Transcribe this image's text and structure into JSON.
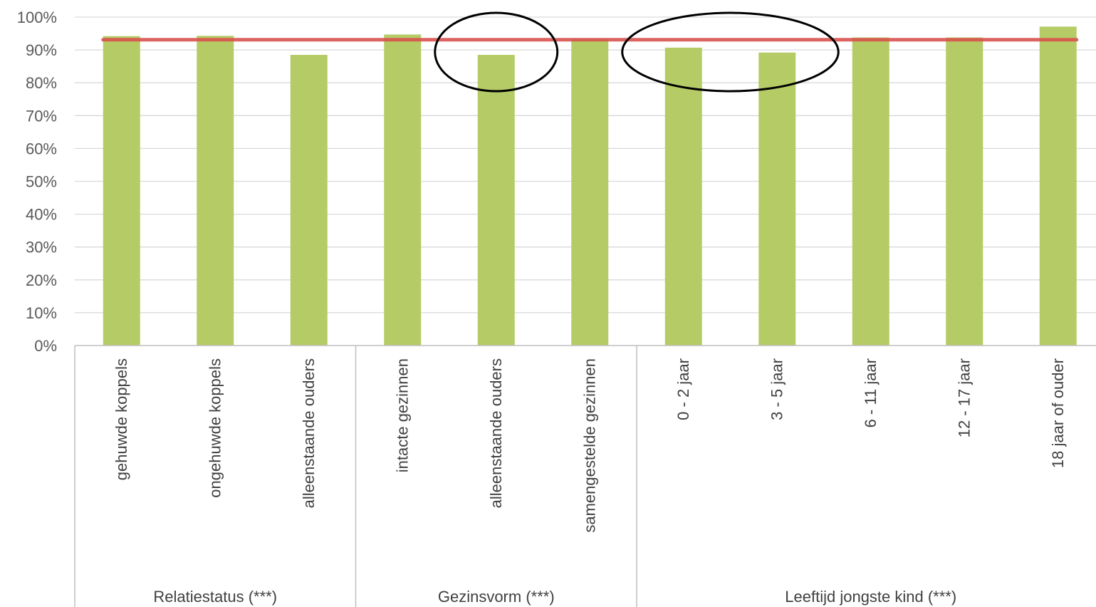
{
  "chart_data": {
    "type": "bar",
    "y_ticks": [
      "0%",
      "10%",
      "20%",
      "30%",
      "40%",
      "50%",
      "60%",
      "70%",
      "80%",
      "90%",
      "100%"
    ],
    "ylim": [
      0,
      100
    ],
    "grid": true,
    "categories": [
      "gehuwde koppels",
      "ongehuwde koppels",
      "alleenstaande ouders",
      "intacte gezinnen",
      "alleenstaande ouders",
      "samengestelde gezinnen",
      "0 - 2 jaar",
      "3 - 5 jaar",
      "6 - 11 jaar",
      "12 - 17 jaar",
      "18 jaar of ouder"
    ],
    "series": [
      {
        "values": [
          94.2,
          94.3,
          88.5,
          94.7,
          88.5,
          93.4,
          90.7,
          89.2,
          93.8,
          93.8,
          97.1
        ]
      }
    ],
    "reference_line": {
      "value": 93.1
    },
    "groups": [
      {
        "label": "Relatiestatus (***)",
        "count": 3
      },
      {
        "label": "Gezinsvorm (***)",
        "count": 3
      },
      {
        "label": "Leeftijd jongste kind  (***)",
        "count": 5
      }
    ],
    "highlighted_categories": [
      4,
      6,
      7
    ],
    "colors": {
      "bar": "#b5cc66",
      "reference_line": "#d9534f",
      "grid": "#d9d9d9",
      "axis": "#bfbfbf",
      "highlight": "#000000"
    }
  }
}
